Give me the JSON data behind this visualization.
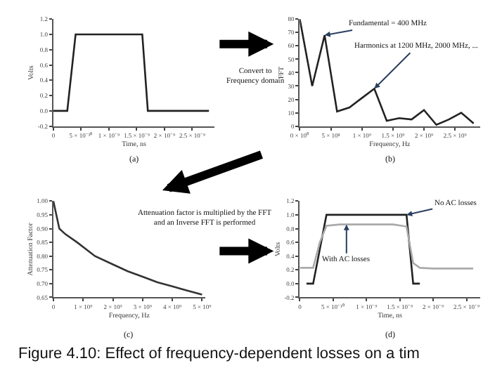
{
  "chart_data": [
    {
      "type": "line",
      "xlabel": "Time, ns",
      "ylabel": "Volts",
      "x": [
        0,
        2.5e-10,
        4e-10,
        1.6e-09,
        1.7e-09,
        2.8e-09
      ],
      "series": [
        {
          "color": "#222222",
          "values": [
            0,
            0,
            1.0,
            1.0,
            0,
            0
          ]
        }
      ],
      "xlim": [
        0,
        2.9e-09
      ],
      "ylim": [
        -0.2,
        1.2
      ],
      "xticks": [
        0,
        {
          "value": 5e-10,
          "label": "5 × 10⁻¹⁰"
        },
        {
          "value": 1e-09,
          "label": "1 × 10⁻⁹"
        },
        {
          "value": 1.5e-09,
          "label": "1.5 × 10⁻⁹"
        },
        {
          "value": 2e-09,
          "label": "2 × 10⁻⁹"
        },
        {
          "value": 2.5e-09,
          "label": "2.5 × 10⁻⁹"
        }
      ],
      "yticks": [
        -0.2,
        {
          "value": 0,
          "label": "0.0"
        },
        0.2,
        0.4,
        0.6,
        0.8,
        {
          "value": 1,
          "label": "1.0"
        },
        1.2
      ],
      "annotations": [
        "(a)",
        "Convert to Frequency domain"
      ]
    },
    {
      "type": "line",
      "xlabel": "Frequency, Hz",
      "ylabel": "FFT",
      "x": [
        0,
        200000000.0,
        400000000.0,
        600000000.0,
        800000000.0,
        1000000000.0,
        1200000000.0,
        1400000000.0,
        1600000000.0,
        1800000000.0,
        2000000000.0,
        2200000000.0,
        2400000000.0,
        2600000000.0,
        2800000000.0
      ],
      "series": [
        {
          "color": "#222222",
          "values": [
            80,
            30,
            68,
            11,
            14,
            21,
            28,
            4,
            6,
            5,
            12,
            1,
            5,
            10,
            2
          ]
        }
      ],
      "xlim": [
        0,
        2900000000.0
      ],
      "ylim": [
        0,
        80
      ],
      "xticks": [
        {
          "value": 0,
          "label": "0 × 10⁰"
        },
        {
          "value": 500000000.0,
          "label": "5 × 10⁸"
        },
        {
          "value": 1000000000.0,
          "label": "1 × 10⁹"
        },
        {
          "value": 1500000000.0,
          "label": "1.5 × 10⁹"
        },
        {
          "value": 2000000000.0,
          "label": "2 × 10⁹"
        },
        {
          "value": 2500000000.0,
          "label": "2.5 × 10⁹"
        }
      ],
      "yticks": [
        0,
        10,
        20,
        30,
        40,
        50,
        60,
        70,
        80
      ],
      "annotations": [
        {
          "text": "Fundamental = 400 MHz",
          "x": 400000000.0,
          "y": 68
        },
        {
          "text": "Harmonics at 1200 MHz, 2000 MHz, ...",
          "x": 1200000000.0,
          "y": 28
        },
        "(b)"
      ]
    },
    {
      "type": "line",
      "xlabel": "Frequency, Hz",
      "ylabel": "Attenuation Factor",
      "x": [
        0,
        100000000.0,
        200000000.0,
        400000000.0,
        800000000.0,
        1400000000.0,
        2000000000.0,
        2500000000.0,
        3000000000.0,
        3500000000.0,
        4000000000.0,
        4500000000.0,
        5000000000.0
      ],
      "series": [
        {
          "color": "#333333",
          "values": [
            1.0,
            0.95,
            0.9,
            0.88,
            0.85,
            0.8,
            0.77,
            0.745,
            0.725,
            0.705,
            0.69,
            0.675,
            0.66
          ]
        }
      ],
      "xlim": [
        0,
        5100000000.0
      ],
      "ylim": [
        0.65,
        1.0
      ],
      "xticks": [
        0,
        {
          "value": 1000000000.0,
          "label": "1 × 10⁹"
        },
        {
          "value": 2000000000.0,
          "label": "2 × 10⁹"
        },
        {
          "value": 3000000000.0,
          "label": "3 × 10⁹"
        },
        {
          "value": 4000000000.0,
          "label": "4 × 10⁹"
        },
        {
          "value": 5000000000.0,
          "label": "5 × 10⁹"
        }
      ],
      "yticks": [
        0.65,
        {
          "value": 0.7,
          "label": "0.70"
        },
        0.75,
        {
          "value": 0.8,
          "label": "0.80"
        },
        0.85,
        {
          "value": 0.9,
          "label": "0.90"
        },
        0.95,
        {
          "value": 1,
          "label": "1.00"
        }
      ],
      "annotations": [
        "(c)",
        "Attenuation factor is multiplied by the FFT and an Inverse FFT is performed"
      ]
    },
    {
      "type": "line",
      "xlabel": "Time, ns",
      "ylabel": "Volts",
      "x": [
        0,
        1e-10,
        2e-10,
        3e-10,
        4e-10,
        6e-10,
        1e-09,
        1.4e-09,
        1.6e-09,
        1.7e-09,
        1.8e-09,
        2e-09,
        2.6e-09
      ],
      "series": [
        {
          "color": "#222222",
          "values": [
            null,
            0,
            0,
            0.5,
            1.0,
            1.0,
            1.0,
            1.0,
            1.0,
            0,
            0,
            null,
            null
          ]
        },
        {
          "color": "#aaaaaa",
          "values": [
            0.23,
            0.23,
            0.23,
            0.6,
            0.84,
            0.86,
            0.86,
            0.86,
            0.83,
            0.3,
            0.23,
            0.22,
            0.22
          ]
        }
      ],
      "xlim": [
        0,
        2.7e-09
      ],
      "ylim": [
        -0.2,
        1.2
      ],
      "xticks": [
        0,
        {
          "value": 5e-10,
          "label": "5 × 10⁻¹⁰"
        },
        {
          "value": 1e-09,
          "label": "1 × 10⁻⁹"
        },
        {
          "value": 1.5e-09,
          "label": "1.5 × 10⁻⁹"
        },
        {
          "value": 2e-09,
          "label": "2 × 10⁻⁹"
        },
        {
          "value": 2.5e-09,
          "label": "2.5 × 10⁻⁹"
        }
      ],
      "yticks": [
        -0.2,
        {
          "value": 0,
          "label": "0.0"
        },
        0.2,
        0.4,
        0.6,
        0.8,
        {
          "value": 1,
          "label": "1.0"
        },
        1.2
      ],
      "annotations": [
        {
          "text": "No AC losses",
          "x": 1.6e-09,
          "y": 1.0
        },
        {
          "text": "With AC losses",
          "x": 7e-10,
          "y": 0.86
        },
        "(d)",
        "Figure 4.10: Effect of frequency-dependent losses on a tim"
      ]
    }
  ]
}
